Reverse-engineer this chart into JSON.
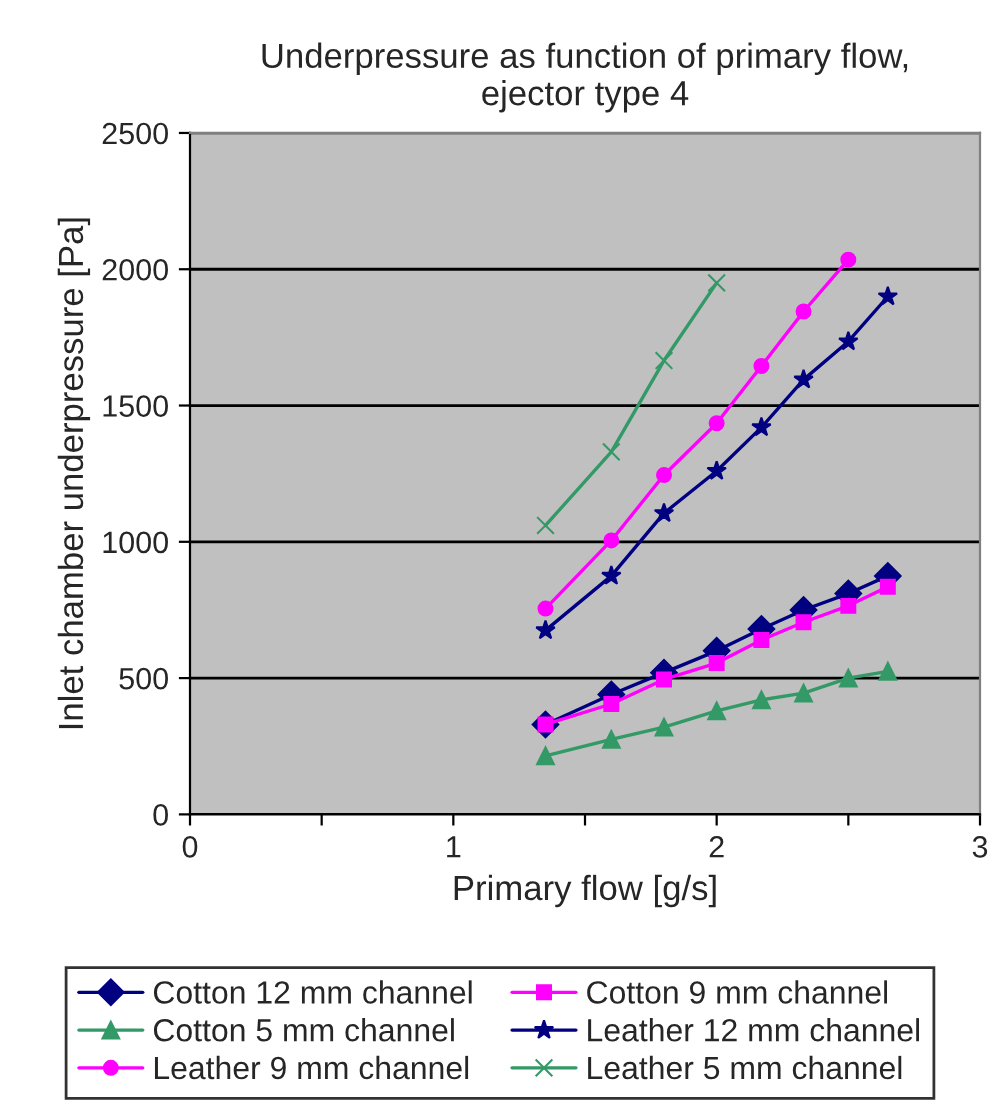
{
  "chart_data": {
    "type": "line",
    "title": "Underpressure as function of primary flow,\nejector type 4",
    "xlabel": "Primary flow [g/s]",
    "ylabel": "Inlet chamber underpressure [Pa]",
    "xlim": [
      0,
      3
    ],
    "ylim": [
      0,
      2500
    ],
    "xticks": [
      0,
      {
        "value": 0.5,
        "label": null
      },
      1,
      {
        "value": 1.5,
        "label": null
      },
      2,
      {
        "value": 2.5,
        "label": null
      },
      3
    ],
    "yticks": [
      0,
      500,
      1000,
      1500,
      2000,
      2500
    ],
    "grid": "y",
    "legend": "bottom",
    "line_style": "solid",
    "series": [
      {
        "name": "Cotton 12 mm channel",
        "color": "#000080",
        "marker": "diamond",
        "x": [
          1.35,
          1.6,
          1.8,
          2.0,
          2.17,
          2.33,
          2.5,
          2.65
        ],
        "values": [
          330,
          440,
          520,
          600,
          680,
          750,
          810,
          875
        ]
      },
      {
        "name": "Cotton 9 mm channel",
        "color": "#ff00ff",
        "marker": "square",
        "x": [
          1.35,
          1.6,
          1.8,
          2.0,
          2.17,
          2.33,
          2.5,
          2.65
        ],
        "values": [
          330,
          405,
          495,
          555,
          640,
          705,
          765,
          835
        ]
      },
      {
        "name": "Cotton 5 mm channel",
        "color": "#339966",
        "marker": "triangle",
        "x": [
          1.35,
          1.6,
          1.8,
          2.0,
          2.17,
          2.33,
          2.5,
          2.65
        ],
        "values": [
          215,
          275,
          320,
          380,
          420,
          445,
          500,
          525
        ]
      },
      {
        "name": "Leather 12 mm channel",
        "color": "#000080",
        "marker": "star",
        "x": [
          1.35,
          1.6,
          1.8,
          2.0,
          2.17,
          2.33,
          2.5,
          2.65
        ],
        "values": [
          675,
          875,
          1105,
          1260,
          1420,
          1595,
          1735,
          1900
        ]
      },
      {
        "name": "Leather 9 mm channel",
        "color": "#ff00ff",
        "marker": "circle",
        "x": [
          1.35,
          1.6,
          1.8,
          2.0,
          2.17,
          2.33,
          2.5
        ],
        "values": [
          755,
          1005,
          1245,
          1435,
          1645,
          1845,
          2035
        ]
      },
      {
        "name": "Leather 5 mm channel",
        "color": "#339966",
        "marker": "cross",
        "x": [
          1.35,
          1.6,
          1.8,
          2.0
        ],
        "values": [
          1060,
          1330,
          1665,
          1950
        ]
      }
    ]
  }
}
